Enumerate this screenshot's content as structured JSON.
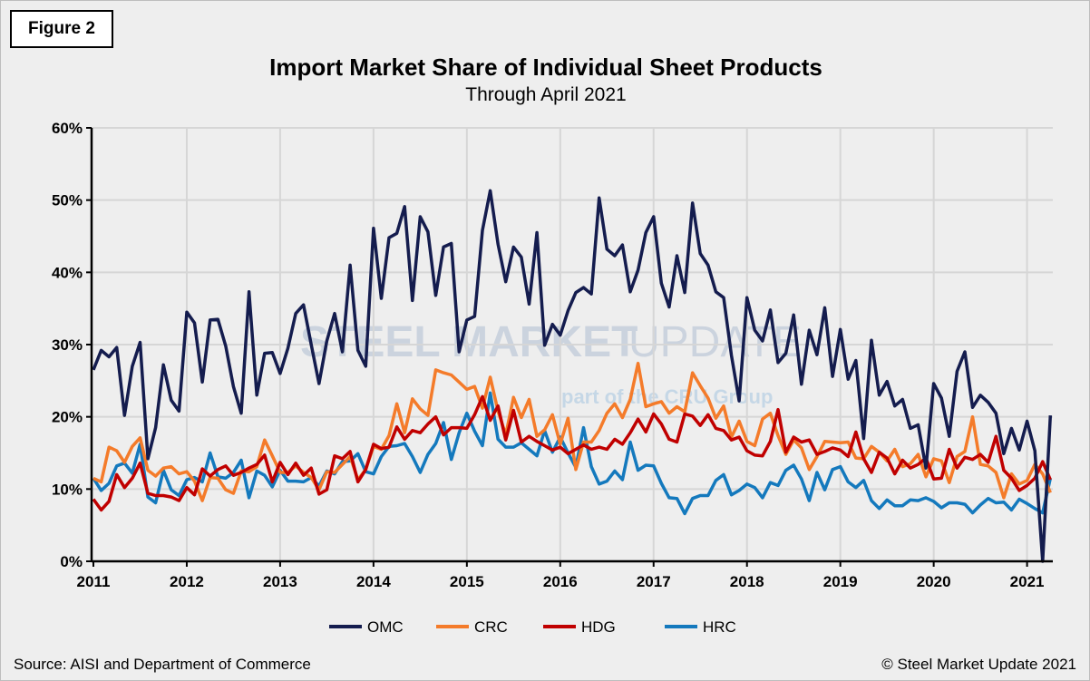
{
  "figure_label": "Figure 2",
  "source": "Source: AISI and Department of Commerce",
  "copyright": "© Steel Market Update 2021",
  "watermark": {
    "line1_bold": "STEEL MARKET",
    "line1_light": "UPDATE",
    "line2": "part of the CRU Group"
  },
  "chart_data": {
    "type": "line",
    "title": "Import Market Share of Individual Sheet Products",
    "subtitle": "Through April 2021",
    "xlabel": "",
    "ylabel": "",
    "x_start": "2011-01",
    "x_end": "2021-04",
    "frequency": "monthly",
    "x_tick_labels": [
      "2011",
      "2012",
      "2013",
      "2014",
      "2015",
      "2016",
      "2017",
      "2018",
      "2019",
      "2020",
      "2021"
    ],
    "y_tick_labels": [
      "0%",
      "10%",
      "20%",
      "30%",
      "40%",
      "50%",
      "60%"
    ],
    "ylim": [
      0,
      60
    ],
    "grid": true,
    "legend_position": "bottom",
    "series": [
      {
        "name": "OMC",
        "color": "#141c4e",
        "values": [
          26.5,
          29.2,
          28.3,
          29.6,
          20.2,
          27.0,
          30.3,
          14.2,
          18.5,
          27.2,
          22.3,
          20.8,
          34.5,
          33.0,
          24.8,
          33.4,
          33.5,
          29.8,
          24.2,
          20.5,
          37.3,
          23.0,
          28.8,
          28.9,
          26.0,
          29.5,
          34.3,
          35.5,
          30.0,
          24.6,
          30.5,
          34.3,
          29.0,
          41.0,
          29.2,
          27.0,
          46.1,
          36.4,
          44.8,
          45.4,
          49.1,
          36.1,
          47.7,
          45.6,
          36.8,
          43.5,
          44.0,
          29.0,
          33.4,
          33.9,
          45.8,
          51.3,
          43.9,
          38.7,
          43.5,
          42.1,
          35.6,
          45.5,
          29.9,
          32.8,
          31.3,
          34.7,
          37.2,
          37.9,
          37.0,
          50.3,
          43.2,
          42.3,
          43.8,
          37.3,
          40.3,
          45.5,
          47.7,
          38.5,
          35.2,
          42.3,
          37.2,
          49.6,
          42.6,
          41.0,
          37.3,
          36.5,
          28.5,
          22.2,
          36.5,
          32.0,
          30.5,
          34.8,
          27.5,
          28.8,
          34.1,
          24.5,
          32.0,
          28.6,
          35.1,
          25.6,
          32.1,
          25.2,
          27.8,
          17.0,
          30.6,
          23.0,
          24.9,
          21.5,
          22.4,
          18.4,
          18.9,
          12.9,
          24.6,
          22.6,
          17.3,
          26.3,
          29.0,
          21.3,
          23.0,
          22.0,
          20.5,
          14.9,
          18.4,
          15.4,
          19.4,
          15.3,
          0.0,
          20.2
        ]
      },
      {
        "name": "CRC",
        "color": "#f47b2a",
        "values": [
          11.5,
          11.0,
          15.8,
          15.3,
          13.7,
          15.9,
          17.1,
          12.6,
          11.8,
          12.9,
          13.1,
          12.1,
          12.4,
          11.1,
          8.4,
          11.6,
          11.5,
          9.9,
          9.4,
          12.5,
          12.4,
          13.1,
          16.8,
          14.6,
          12.3,
          12.3,
          13.2,
          12.3,
          11.6,
          9.9,
          12.4,
          12.3,
          13.4,
          14.5,
          11.3,
          12.7,
          15.9,
          15.5,
          17.4,
          21.8,
          17.8,
          22.5,
          21.1,
          20.2,
          26.5,
          26.1,
          25.8,
          24.8,
          23.8,
          24.2,
          21.2,
          25.5,
          20.8,
          17.5,
          22.7,
          19.9,
          22.4,
          17.3,
          18.2,
          20.3,
          16.2,
          19.8,
          12.7,
          16.5,
          16.5,
          18.1,
          20.5,
          21.8,
          19.9,
          22.4,
          27.4,
          21.4,
          21.8,
          22.1,
          20.5,
          21.4,
          20.7,
          26.1,
          24.3,
          22.6,
          19.8,
          21.5,
          17.2,
          19.4,
          16.6,
          16.0,
          19.7,
          20.5,
          17.4,
          14.8,
          16.8,
          15.7,
          12.7,
          14.5,
          16.6,
          16.5,
          16.4,
          16.5,
          14.3,
          14.2,
          15.9,
          15.1,
          13.9,
          15.5,
          13.1,
          13.5,
          14.8,
          11.7,
          14.2,
          13.9,
          10.9,
          14.5,
          15.2,
          20.0,
          13.4,
          13.2,
          12.3,
          8.8,
          12.1,
          10.7,
          11.2,
          13.4,
          12.1,
          9.5
        ]
      },
      {
        "name": "HDG",
        "color": "#c00000",
        "values": [
          8.6,
          7.1,
          8.3,
          12.0,
          10.2,
          11.5,
          13.6,
          9.4,
          9.1,
          9.1,
          8.9,
          8.4,
          10.2,
          9.2,
          12.8,
          11.8,
          12.7,
          13.2,
          11.9,
          12.3,
          12.9,
          13.4,
          14.7,
          11.0,
          13.7,
          12.0,
          13.6,
          11.9,
          12.9,
          9.3,
          9.9,
          14.6,
          14.2,
          15.2,
          11.0,
          12.7,
          16.2,
          15.6,
          15.8,
          18.6,
          16.9,
          18.1,
          17.8,
          19.0,
          20.0,
          17.5,
          18.5,
          18.5,
          18.4,
          20.3,
          22.8,
          19.5,
          21.5,
          16.8,
          20.9,
          16.5,
          17.3,
          16.6,
          16.0,
          15.4,
          15.8,
          14.9,
          15.5,
          16.1,
          15.5,
          15.8,
          15.5,
          16.9,
          16.2,
          17.8,
          19.7,
          17.9,
          20.4,
          19.0,
          16.9,
          16.5,
          20.4,
          20.1,
          18.8,
          20.3,
          18.4,
          18.1,
          16.8,
          17.2,
          15.3,
          14.7,
          14.6,
          16.6,
          21.0,
          15.1,
          17.2,
          16.5,
          16.8,
          14.8,
          15.2,
          15.7,
          15.4,
          14.5,
          17.9,
          14.2,
          12.3,
          15.1,
          14.3,
          12.1,
          14.0,
          12.9,
          13.4,
          14.3,
          11.4,
          11.5,
          15.5,
          12.9,
          14.4,
          14.1,
          14.8,
          13.7,
          17.3,
          12.6,
          11.5,
          9.8,
          10.5,
          11.5,
          13.8,
          11.3
        ]
      },
      {
        "name": "HRC",
        "color": "#1479bd",
        "values": [
          11.5,
          9.8,
          10.8,
          13.2,
          13.6,
          12.2,
          16.2,
          8.9,
          8.1,
          12.6,
          9.9,
          9.1,
          11.3,
          11.6,
          11.0,
          15.0,
          11.7,
          11.5,
          12.3,
          14.0,
          8.8,
          12.5,
          11.9,
          10.3,
          12.6,
          11.1,
          11.1,
          11.0,
          11.6,
          10.4,
          12.5,
          12.1,
          13.8,
          13.9,
          14.9,
          12.4,
          12.1,
          14.5,
          15.9,
          16.0,
          16.3,
          14.5,
          12.3,
          14.8,
          16.3,
          19.2,
          14.1,
          17.8,
          20.5,
          18.0,
          16.0,
          23.3,
          16.9,
          15.8,
          15.8,
          16.4,
          15.5,
          14.6,
          18.1,
          15.1,
          17.2,
          15.0,
          13.0,
          18.5,
          13.1,
          10.7,
          11.1,
          12.5,
          11.3,
          16.5,
          12.6,
          13.3,
          13.2,
          10.8,
          8.8,
          8.7,
          6.6,
          8.7,
          9.1,
          9.1,
          11.2,
          12.0,
          9.2,
          9.8,
          10.7,
          10.2,
          8.8,
          10.9,
          10.5,
          12.6,
          13.3,
          11.4,
          8.4,
          12.3,
          9.9,
          12.7,
          13.1,
          11.0,
          10.2,
          11.2,
          8.4,
          7.3,
          8.5,
          7.7,
          7.7,
          8.5,
          8.4,
          8.8,
          8.3,
          7.4,
          8.1,
          8.1,
          7.9,
          6.7,
          7.8,
          8.7,
          8.1,
          8.2,
          7.1,
          8.6,
          8.0,
          7.3,
          6.7,
          11.5
        ]
      }
    ]
  }
}
